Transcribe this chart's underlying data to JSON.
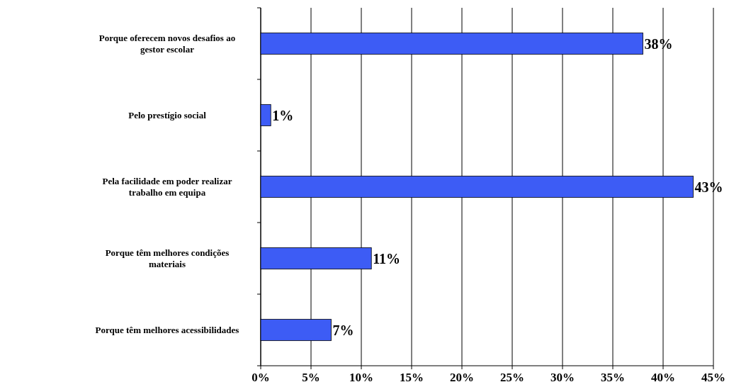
{
  "chart_data": {
    "type": "bar",
    "orientation": "horizontal",
    "categories": [
      "Porque oferecem novos desafios ao gestor escolar",
      "Pelo prestígio social",
      "Pela facilidade em poder realizar trabalho em equipa",
      "Porque têm melhores condições materiais",
      "Porque têm melhores acessibilidades"
    ],
    "values": [
      38,
      1,
      43,
      11,
      7
    ],
    "value_labels": [
      "38%",
      "1%",
      "43%",
      "11%",
      "7%"
    ],
    "color": "#3d5cf5",
    "xlim": [
      0,
      45
    ],
    "xticks": [
      {
        "value": 0,
        "label": "0%"
      },
      {
        "value": 5,
        "label": "5%"
      },
      {
        "value": 10,
        "label": "10%"
      },
      {
        "value": 15,
        "label": "15%"
      },
      {
        "value": 20,
        "label": "20%"
      },
      {
        "value": 25,
        "label": "25%"
      },
      {
        "value": 30,
        "label": "30%"
      },
      {
        "value": 35,
        "label": "35%"
      },
      {
        "value": 40,
        "label": "40%"
      },
      {
        "value": 45,
        "label": "45%"
      }
    ],
    "grid": "x"
  }
}
